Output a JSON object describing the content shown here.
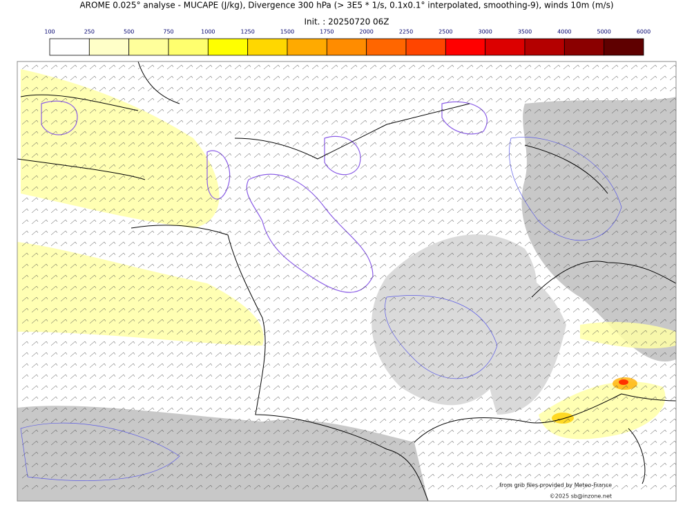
{
  "header": {
    "title": "AROME 0.025° analyse - MUCAPE (J/kg), Divergence 300 hPa (> 3E5 * 1/s, 0.1x0.1° interpolated, smoothing-9), winds 10m (m/s)",
    "init": "Init. : 20250720 06Z"
  },
  "colorbar": {
    "ticks": [
      "100",
      "250",
      "500",
      "750",
      "1000",
      "1250",
      "1500",
      "1750",
      "2000",
      "2250",
      "2500",
      "3000",
      "3500",
      "4000",
      "5000",
      "6000"
    ],
    "colors": [
      "#ffffff",
      "#ffffc8",
      "#ffff9b",
      "#ffff6e",
      "#ffff00",
      "#ffd700",
      "#ffaa00",
      "#ff8c00",
      "#ff6600",
      "#ff4500",
      "#ff0000",
      "#dc0000",
      "#b40000",
      "#8b0000",
      "#5f0000"
    ]
  },
  "credits": {
    "source": "from grib files provided by Meteo-France",
    "copyright": "©2025 sb@inzone.net"
  }
}
